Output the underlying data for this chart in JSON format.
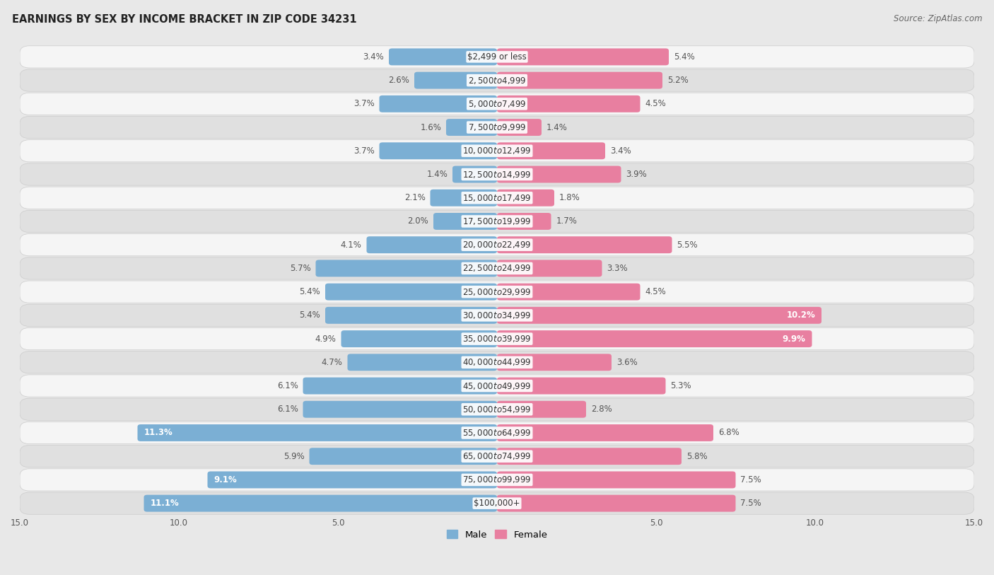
{
  "title": "EARNINGS BY SEX BY INCOME BRACKET IN ZIP CODE 34231",
  "source": "Source: ZipAtlas.com",
  "categories": [
    "$2,499 or less",
    "$2,500 to $4,999",
    "$5,000 to $7,499",
    "$7,500 to $9,999",
    "$10,000 to $12,499",
    "$12,500 to $14,999",
    "$15,000 to $17,499",
    "$17,500 to $19,999",
    "$20,000 to $22,499",
    "$22,500 to $24,999",
    "$25,000 to $29,999",
    "$30,000 to $34,999",
    "$35,000 to $39,999",
    "$40,000 to $44,999",
    "$45,000 to $49,999",
    "$50,000 to $54,999",
    "$55,000 to $64,999",
    "$65,000 to $74,999",
    "$75,000 to $99,999",
    "$100,000+"
  ],
  "male_values": [
    3.4,
    2.6,
    3.7,
    1.6,
    3.7,
    1.4,
    2.1,
    2.0,
    4.1,
    5.7,
    5.4,
    5.4,
    4.9,
    4.7,
    6.1,
    6.1,
    11.3,
    5.9,
    9.1,
    11.1
  ],
  "female_values": [
    5.4,
    5.2,
    4.5,
    1.4,
    3.4,
    3.9,
    1.8,
    1.7,
    5.5,
    3.3,
    4.5,
    10.2,
    9.9,
    3.6,
    5.3,
    2.8,
    6.8,
    5.8,
    7.5,
    7.5
  ],
  "male_color": "#7bafd4",
  "female_color": "#e87fa0",
  "male_label": "Male",
  "female_label": "Female",
  "xlim": 15.0,
  "background_color": "#e8e8e8",
  "row_color_even": "#f5f5f5",
  "row_color_odd": "#e0e0e0",
  "title_fontsize": 10.5,
  "label_fontsize": 8.5,
  "value_fontsize": 8.5,
  "source_fontsize": 8.5
}
